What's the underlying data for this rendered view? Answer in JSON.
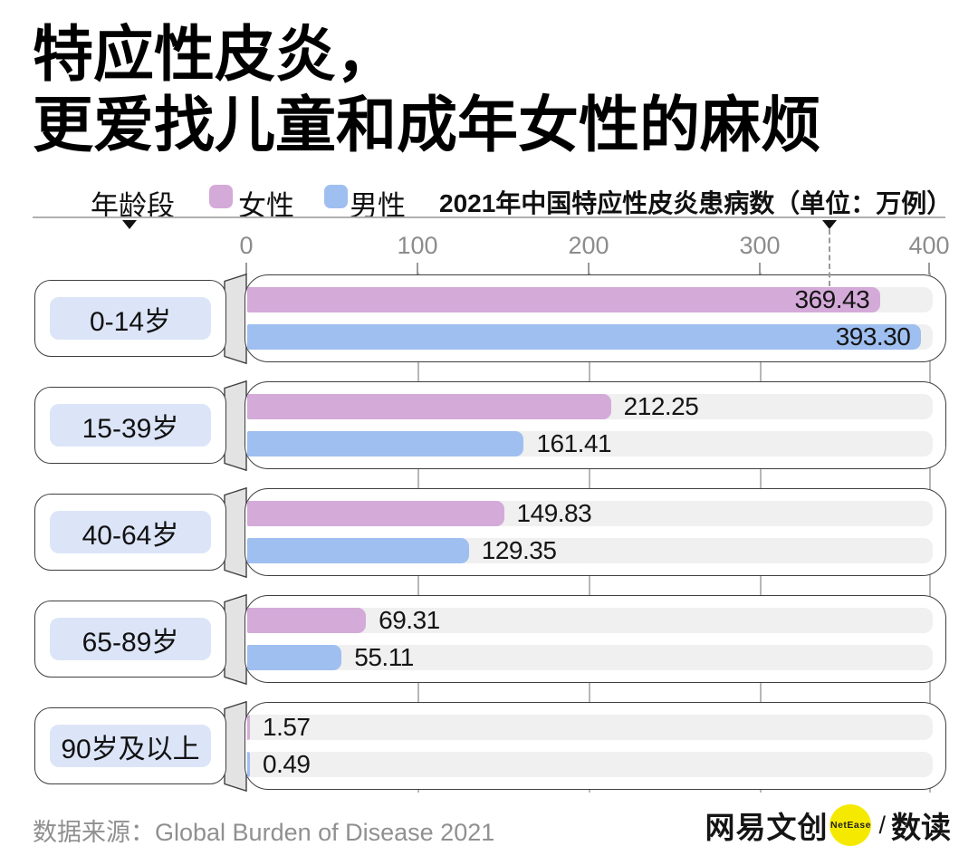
{
  "title": {
    "line1": "特应性皮炎，",
    "line2": "更爱找儿童和成年女性的麻烦"
  },
  "header": {
    "axis_label": "年龄段",
    "legend": [
      {
        "label": "女性",
        "color": "#d4aad9"
      },
      {
        "label": "男性",
        "color": "#9fbff0"
      }
    ],
    "subtitle": "2021年中国特应性皮炎患病数（单位：万例）"
  },
  "axis": {
    "ticks": [
      "0",
      "100",
      "200",
      "300",
      "400"
    ],
    "min": 0,
    "max": 400
  },
  "chart_data": {
    "type": "bar",
    "orientation": "horizontal",
    "title": "2021年中国特应性皮炎患病数（单位：万例）",
    "unit": "万例",
    "categories": [
      "0-14岁",
      "15-39岁",
      "40-64岁",
      "65-89岁",
      "90岁及以上"
    ],
    "series": [
      {
        "name": "女性",
        "color": "#d4aad9",
        "values": [
          369.43,
          212.25,
          149.83,
          69.31,
          1.57
        ]
      },
      {
        "name": "男性",
        "color": "#9fbff0",
        "values": [
          393.3,
          161.41,
          129.35,
          55.11,
          0.49
        ]
      }
    ],
    "xlim": [
      0,
      400
    ],
    "grid": "ticks-between-rows",
    "legend_position": "top"
  },
  "footer": {
    "source": "数据来源：Global Burden of Disease 2021",
    "brand": "网易文创",
    "brand_badge": "NetEase",
    "separator": "/",
    "brand_suffix": "数读"
  }
}
